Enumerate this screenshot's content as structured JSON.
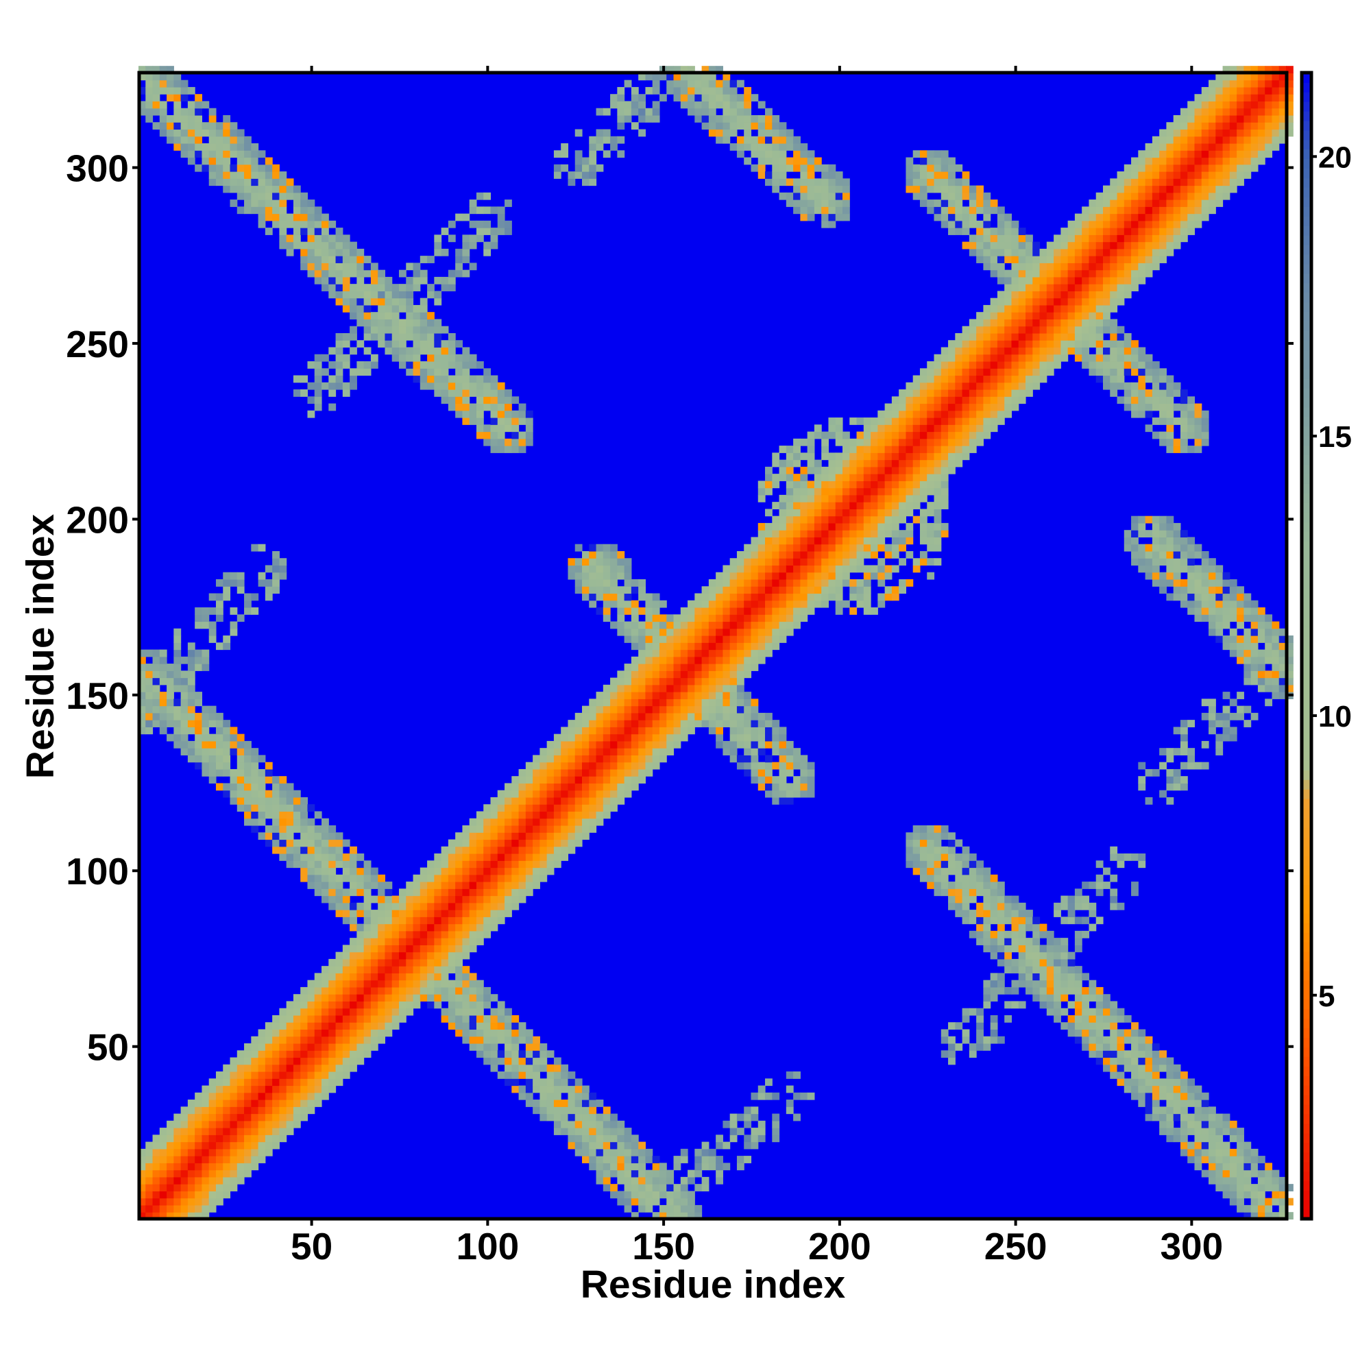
{
  "chart_data": {
    "type": "heatmap",
    "title": "",
    "xlabel": "Residue index",
    "ylabel": "Residue index",
    "xlim": [
      1,
      327
    ],
    "ylim": [
      1,
      327
    ],
    "x_ticks": [
      50,
      100,
      150,
      200,
      250,
      300
    ],
    "y_ticks": [
      50,
      100,
      150,
      200,
      250,
      300
    ],
    "colorbar": {
      "ticks": [
        5,
        10,
        15,
        20
      ],
      "range": [
        1,
        21.5
      ],
      "colors": [
        {
          "value": 1,
          "color": "#e80000"
        },
        {
          "value": 4,
          "color": "#ff5500"
        },
        {
          "value": 6.5,
          "color": "#ff9900"
        },
        {
          "value": 8.5,
          "color": "#f0a030"
        },
        {
          "value": 9,
          "color": "#a8c090"
        },
        {
          "value": 13,
          "color": "#98b898"
        },
        {
          "value": 17.5,
          "color": "#6a8aa8"
        },
        {
          "value": 20,
          "color": "#3c64b4"
        },
        {
          "value": 21.5,
          "color": "#0000f2"
        }
      ]
    },
    "background_value": 21.5,
    "background_color": "#0000f2",
    "grid": false,
    "features": [
      {
        "kind": "main-diagonal",
        "from": [
          1,
          1
        ],
        "to": [
          327,
          327
        ]
      },
      {
        "kind": "band",
        "from": [
          1,
          325
        ],
        "to": [
          105,
          225
        ]
      },
      {
        "kind": "band",
        "from": [
          1,
          155
        ],
        "to": [
          152,
          1
        ]
      },
      {
        "kind": "band",
        "from": [
          225,
          105
        ],
        "to": [
          325,
          1
        ]
      },
      {
        "kind": "band",
        "from": [
          225,
          297
        ],
        "to": [
          297,
          225
        ]
      },
      {
        "kind": "band",
        "from": [
          130,
          185
        ],
        "to": [
          185,
          125
        ]
      },
      {
        "kind": "band",
        "from": [
          155,
          327
        ],
        "to": [
          195,
          290
        ]
      },
      {
        "kind": "band",
        "from": [
          288,
          193
        ],
        "to": [
          327,
          155
        ]
      },
      {
        "kind": "sparse-band",
        "from": [
          50,
          235
        ],
        "to": [
          100,
          285
        ]
      },
      {
        "kind": "sparse-band",
        "from": [
          1,
          145
        ],
        "to": [
          35,
          185
        ]
      },
      {
        "kind": "sparse-band",
        "from": [
          155,
          10
        ],
        "to": [
          185,
          35
        ]
      },
      {
        "kind": "sparse-band",
        "from": [
          235,
          50
        ],
        "to": [
          280,
          100
        ]
      },
      {
        "kind": "sparse-band",
        "from": [
          290,
          125
        ],
        "to": [
          320,
          155
        ]
      },
      {
        "kind": "sparse-band",
        "from": [
          125,
          300
        ],
        "to": [
          145,
          320
        ]
      },
      {
        "kind": "cluster",
        "center": [
          203,
          200
        ],
        "radius": 28
      }
    ]
  }
}
